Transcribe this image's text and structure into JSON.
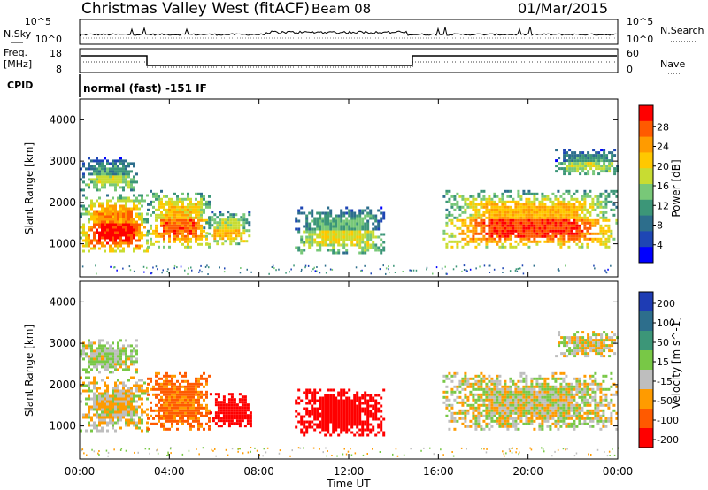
{
  "header": {
    "station": "Christmas Valley West (fitACF)",
    "beam": "Beam 08",
    "date": "01/Mar/2015"
  },
  "strips": {
    "nsky_label": "N.Sky",
    "nsearch_label": "N.Search",
    "noise_ticks_left": [
      "10^5",
      "10^0"
    ],
    "noise_ticks_right": [
      "10^5",
      "10^0"
    ],
    "freq_label_1": "Freq.",
    "freq_label_2": "[MHz]",
    "freq_ticks": [
      "18",
      "8"
    ],
    "nave_label": "Nave",
    "nave_ticks": [
      "60",
      "0"
    ],
    "cpid_label": "CPID",
    "cpid_text": "normal (fast) -151 IF"
  },
  "time_axis": {
    "label": "Time UT",
    "ticks": [
      "00:00",
      "04:00",
      "08:00",
      "12:00",
      "16:00",
      "20:00",
      "00:00"
    ]
  },
  "power_colorbar": {
    "label": "Power [dB]",
    "ticks": [
      "28",
      "24",
      "20",
      "16",
      "12",
      "8",
      "4"
    ],
    "colors": [
      "#ff0000",
      "#ff5a00",
      "#ff9b00",
      "#ffc800",
      "#c8dc32",
      "#78c878",
      "#3c9678",
      "#2d6e8c",
      "#1e46b4",
      "#0000ff"
    ]
  },
  "velocity_colorbar": {
    "label": "Velocity [m s^-1]",
    "ticks": [
      "200",
      "100",
      "50",
      "15",
      "-15",
      "-50",
      "-100",
      "-200"
    ],
    "colors": [
      "#1e3cb4",
      "#2d6e8c",
      "#3c9678",
      "#78c846",
      "#bebebe",
      "#ff9b00",
      "#ff5a00",
      "#ff0000"
    ]
  },
  "chart_data": [
    {
      "type": "heatmap",
      "name": "power",
      "ylabel": "Slant Range [km]",
      "xlabel": "Time UT",
      "xlim": [
        0,
        24
      ],
      "ylim": [
        200,
        4500
      ],
      "yticks": [
        "1000",
        "2000",
        "3000",
        "4000"
      ],
      "zlabel": "Power [dB]",
      "zlim": [
        0,
        30
      ],
      "blobs": [
        {
          "t": [
            0.0,
            3.0
          ],
          "r": [
            800,
            2200
          ],
          "peak": 26
        },
        {
          "t": [
            0.0,
            2.6
          ],
          "r": [
            2300,
            3100
          ],
          "peak": 12
        },
        {
          "t": [
            3.0,
            5.8
          ],
          "r": [
            900,
            2300
          ],
          "peak": 22
        },
        {
          "t": [
            5.5,
            7.6
          ],
          "r": [
            1000,
            1800
          ],
          "peak": 18
        },
        {
          "t": [
            9.6,
            13.6
          ],
          "r": [
            800,
            1900
          ],
          "peak": 14
        },
        {
          "t": [
            16.2,
            24.0
          ],
          "r": [
            900,
            2300
          ],
          "peak": 24
        },
        {
          "t": [
            21.2,
            24.0
          ],
          "r": [
            2700,
            3300
          ],
          "peak": 12
        }
      ]
    },
    {
      "type": "heatmap",
      "name": "velocity",
      "ylabel": "Slant Range [km]",
      "xlabel": "Time UT",
      "xlim": [
        0,
        24
      ],
      "ylim": [
        200,
        4500
      ],
      "yticks": [
        "1000",
        "2000",
        "3000",
        "4000"
      ],
      "zlabel": "Velocity [m s^-1]",
      "zlim": [
        -200,
        200
      ],
      "blobs": [
        {
          "t": [
            0.0,
            3.0
          ],
          "r": [
            900,
            2200
          ],
          "v": -5
        },
        {
          "t": [
            0.0,
            2.6
          ],
          "r": [
            2300,
            3100
          ],
          "v": 10
        },
        {
          "t": [
            3.0,
            5.8
          ],
          "r": [
            900,
            2300
          ],
          "v": -40
        },
        {
          "t": [
            5.8,
            7.6
          ],
          "r": [
            1000,
            1800
          ],
          "v": -220
        },
        {
          "t": [
            9.6,
            13.6
          ],
          "r": [
            800,
            1900
          ],
          "v": -120
        },
        {
          "t": [
            16.2,
            24.0
          ],
          "r": [
            900,
            2300
          ],
          "v": 0
        },
        {
          "t": [
            21.2,
            24.0
          ],
          "r": [
            2700,
            3300
          ],
          "v": 0
        }
      ]
    }
  ]
}
